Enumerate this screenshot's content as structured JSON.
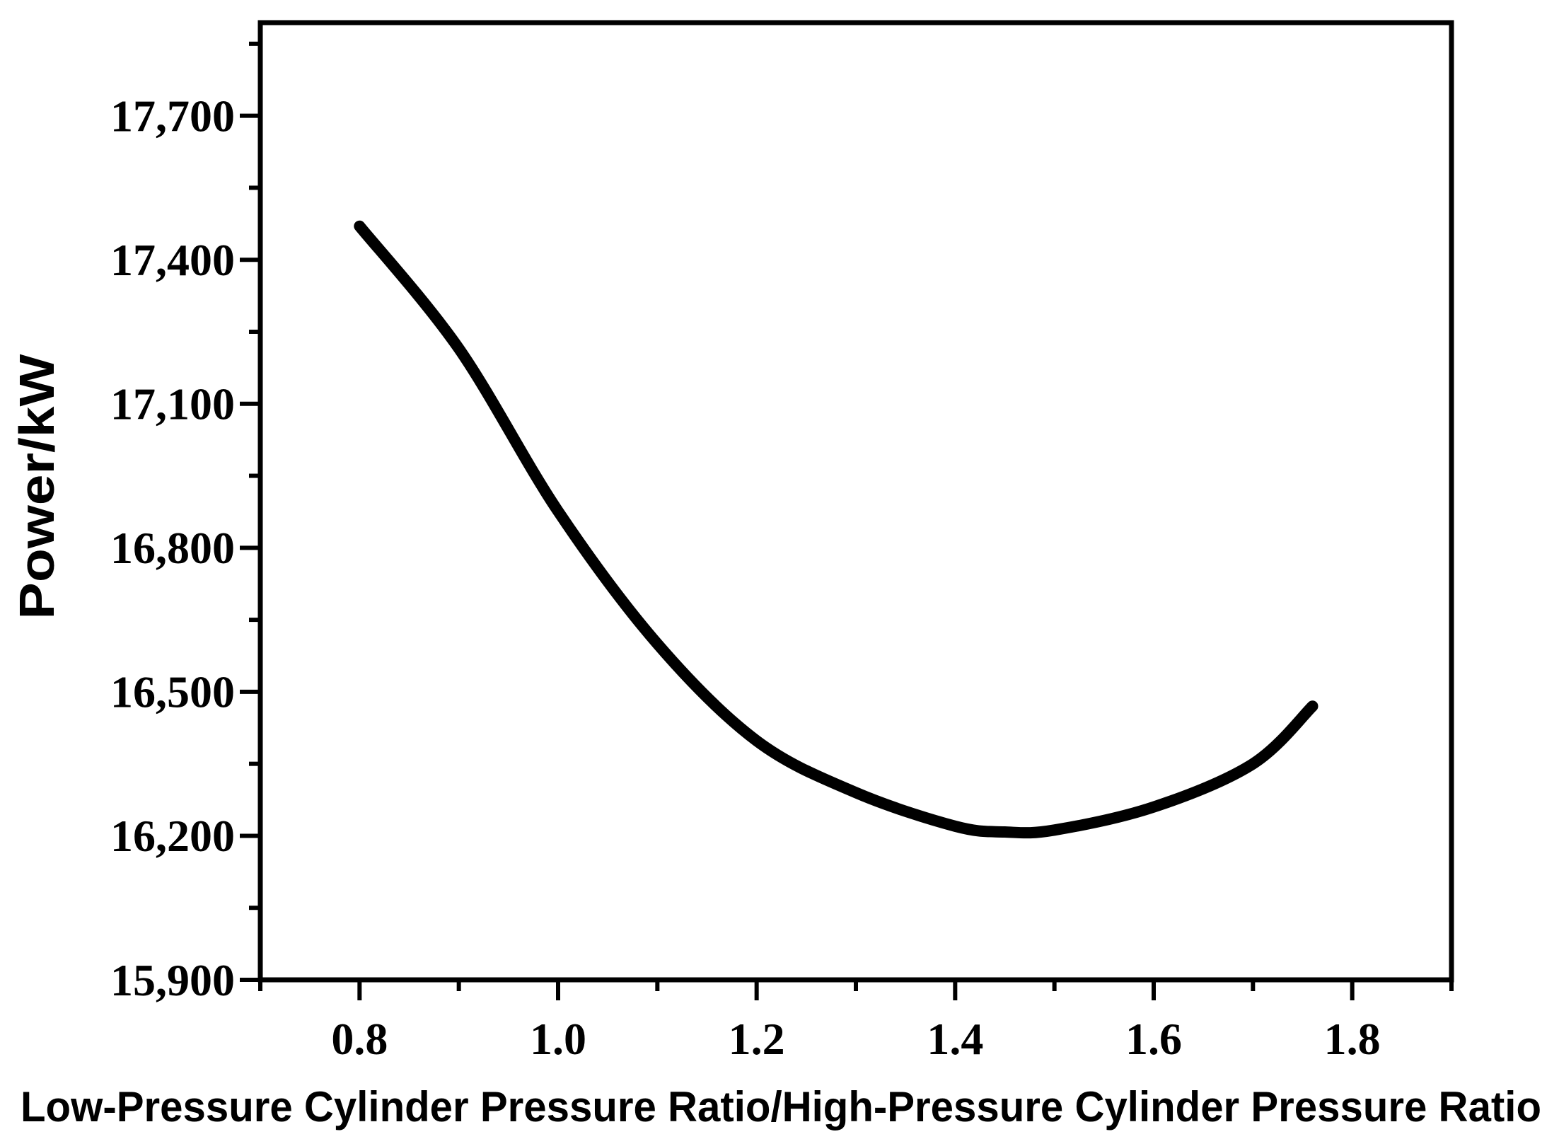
{
  "chart_data": {
    "type": "line",
    "title": "",
    "xlabel": "Low-Pressure Cylinder Pressure Ratio/High-Pressure Cylinder Pressure Ratio",
    "ylabel": "Power/kW",
    "xlim": [
      0.7,
      1.9
    ],
    "ylim": [
      15900,
      17894
    ],
    "grid": false,
    "legend_position": "none",
    "x_major_ticks": [
      0.8,
      1.0,
      1.2,
      1.4,
      1.6,
      1.8
    ],
    "x_major_tick_labels": [
      "0.8",
      "1.0",
      "1.2",
      "1.4",
      "1.6",
      "1.8"
    ],
    "x_minor_ticks": [
      0.7,
      0.9,
      1.1,
      1.3,
      1.5,
      1.7,
      1.9
    ],
    "y_major_ticks": [
      15900,
      16200,
      16500,
      16800,
      17100,
      17400,
      17700
    ],
    "y_major_tick_labels": [
      "15,900",
      "16,200",
      "16,500",
      "16,800",
      "17,100",
      "17,400",
      "17,700"
    ],
    "y_minor_ticks": [
      16050,
      16350,
      16650,
      16950,
      17250,
      17550,
      17850
    ],
    "series": [
      {
        "name": "Power",
        "color": "#000000",
        "x": [
          0.8,
          0.9,
          1.0,
          1.1,
          1.2,
          1.3,
          1.4,
          1.45,
          1.5,
          1.6,
          1.7,
          1.76
        ],
        "y": [
          17470,
          17215,
          16876,
          16600,
          16398,
          16290,
          16220,
          16208,
          16212,
          16260,
          16350,
          16470
        ]
      }
    ]
  },
  "colors": {
    "background": "#ffffff",
    "axis": "#000000",
    "text": "#000000",
    "curve": "#000000"
  }
}
